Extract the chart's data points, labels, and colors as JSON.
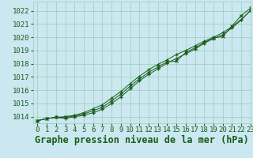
{
  "title": "Graphe pression niveau de la mer (hPa)",
  "background_color": "#cbe8f0",
  "plot_bg_color": "#cbe8f0",
  "grid_color": "#99ccbb",
  "line_color": "#1a5c1a",
  "marker_color": "#1a5c1a",
  "xlim": [
    -0.5,
    23
  ],
  "ylim": [
    1013.5,
    1022.7
  ],
  "yticks": [
    1014,
    1015,
    1016,
    1017,
    1018,
    1019,
    1020,
    1021,
    1022
  ],
  "xticks": [
    0,
    1,
    2,
    3,
    4,
    5,
    6,
    7,
    8,
    9,
    10,
    11,
    12,
    13,
    14,
    15,
    16,
    17,
    18,
    19,
    20,
    21,
    22,
    23
  ],
  "series1": [
    1013.7,
    1013.85,
    1013.95,
    1013.85,
    1014.0,
    1014.1,
    1014.3,
    1014.55,
    1015.0,
    1015.5,
    1016.1,
    1016.7,
    1017.2,
    1017.6,
    1018.05,
    1018.4,
    1018.75,
    1019.1,
    1019.55,
    1019.9,
    1020.2,
    1020.7,
    1021.3,
    1022.05
  ],
  "series2": [
    1013.7,
    1013.85,
    1013.95,
    1014.0,
    1014.1,
    1014.3,
    1014.6,
    1014.9,
    1015.4,
    1015.9,
    1016.5,
    1017.05,
    1017.55,
    1017.95,
    1018.3,
    1018.7,
    1019.0,
    1019.35,
    1019.7,
    1020.0,
    1020.35,
    1020.8,
    1021.35,
    1022.0
  ],
  "series3": [
    1013.7,
    1013.85,
    1013.95,
    1013.95,
    1014.05,
    1014.2,
    1014.45,
    1014.7,
    1015.2,
    1015.7,
    1016.3,
    1016.85,
    1017.35,
    1017.75,
    1018.15,
    1018.2,
    1018.85,
    1019.2,
    1019.6,
    1019.95,
    1020.05,
    1020.85,
    1021.65,
    1022.2
  ],
  "title_color": "#1a5c1a",
  "tick_color": "#1a5c1a",
  "tick_fontsize": 6.5,
  "title_fontsize": 8.5
}
